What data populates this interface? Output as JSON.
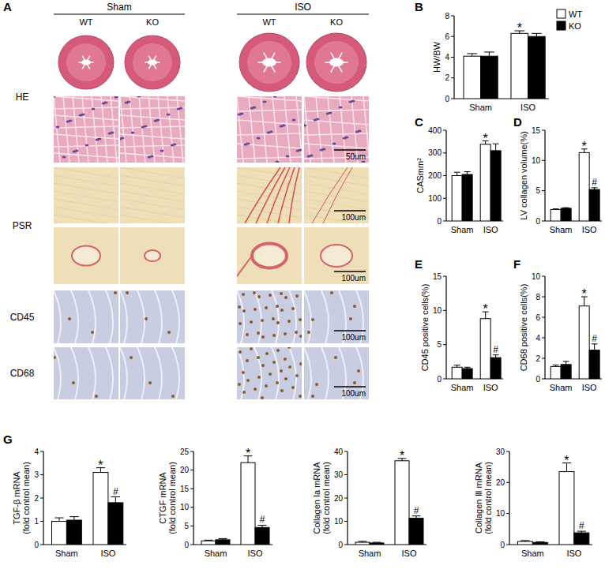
{
  "panel_a": {
    "title": "A",
    "groups": [
      {
        "label": "Sham",
        "columns": [
          "WT",
          "KO"
        ]
      },
      {
        "label": "ISO",
        "columns": [
          "WT",
          "KO"
        ]
      }
    ],
    "rows": [
      {
        "label": "HE",
        "scale_bars": [
          null,
          "50um"
        ]
      },
      {
        "label": "PSR",
        "scale_bars": [
          "100um",
          "100um"
        ]
      },
      {
        "label": "CD45",
        "scale_bars": [
          "100um"
        ]
      },
      {
        "label": "CD68",
        "scale_bars": [
          "100um"
        ]
      }
    ]
  },
  "chart_data": [
    {
      "type": "bar",
      "title": "B",
      "y_label": "HW/BW",
      "categories": [
        "Sham",
        "ISO"
      ],
      "ylim": [
        0,
        8
      ],
      "yticks": [
        0,
        2,
        4,
        6,
        8
      ],
      "legend": "top-right",
      "series": [
        {
          "name": "WT",
          "color": "#ffffff",
          "values": [
            4.1,
            6.3
          ],
          "errors": [
            0.25,
            0.25
          ],
          "annotations": [
            null,
            "*"
          ]
        },
        {
          "name": "KO",
          "color": "#000000",
          "values": [
            4.1,
            6.0
          ],
          "errors": [
            0.4,
            0.3
          ],
          "annotations": [
            null,
            null
          ]
        }
      ]
    },
    {
      "type": "bar",
      "title": "C",
      "y_label": "CASmm²",
      "categories": [
        "Sham",
        "ISO"
      ],
      "ylim": [
        0,
        400
      ],
      "yticks": [
        0,
        100,
        200,
        300,
        400
      ],
      "series": [
        {
          "name": "WT",
          "color": "#ffffff",
          "values": [
            200,
            338
          ],
          "errors": [
            15,
            15
          ],
          "annotations": [
            null,
            "*"
          ]
        },
        {
          "name": "KO",
          "color": "#000000",
          "values": [
            205,
            310
          ],
          "errors": [
            12,
            30
          ],
          "annotations": [
            null,
            null
          ]
        }
      ]
    },
    {
      "type": "bar",
      "title": "D",
      "y_label": "LV  collagen volume(%)",
      "categories": [
        "Sham",
        "ISO"
      ],
      "ylim": [
        0,
        15
      ],
      "yticks": [
        0,
        5,
        10,
        15
      ],
      "series": [
        {
          "name": "WT",
          "color": "#ffffff",
          "values": [
            1.9,
            11.3
          ],
          "errors": [
            0.1,
            0.6
          ],
          "annotations": [
            null,
            "*"
          ]
        },
        {
          "name": "KO",
          "color": "#000000",
          "values": [
            2.1,
            5.2
          ],
          "errors": [
            0.1,
            0.3
          ],
          "annotations": [
            null,
            "#"
          ]
        }
      ]
    },
    {
      "type": "bar",
      "title": "E",
      "y_label": "CD45 positive cells(%)",
      "categories": [
        "Sham",
        "ISO"
      ],
      "ylim": [
        0,
        15
      ],
      "yticks": [
        0,
        5,
        10,
        15
      ],
      "series": [
        {
          "name": "WT",
          "color": "#ffffff",
          "values": [
            1.7,
            8.8
          ],
          "errors": [
            0.3,
            1.0
          ],
          "annotations": [
            null,
            "*"
          ]
        },
        {
          "name": "KO",
          "color": "#000000",
          "values": [
            1.5,
            3.1
          ],
          "errors": [
            0.2,
            0.4
          ],
          "annotations": [
            null,
            "#"
          ]
        }
      ]
    },
    {
      "type": "bar",
      "title": "F",
      "y_label": "CD68 positive cells(%)",
      "categories": [
        "Sham",
        "ISO"
      ],
      "ylim": [
        0,
        10
      ],
      "yticks": [
        0,
        2,
        4,
        6,
        8,
        10
      ],
      "series": [
        {
          "name": "WT",
          "color": "#ffffff",
          "values": [
            1.2,
            7.1
          ],
          "errors": [
            0.15,
            0.9
          ],
          "annotations": [
            null,
            "*"
          ]
        },
        {
          "name": "KO",
          "color": "#000000",
          "values": [
            1.4,
            2.8
          ],
          "errors": [
            0.3,
            0.6
          ],
          "annotations": [
            null,
            "#"
          ]
        }
      ]
    },
    {
      "type": "bar",
      "title": "G",
      "y_label": "TGF-β mRNA\n(fold control mean)",
      "categories": [
        "Sham",
        "ISO"
      ],
      "ylim": [
        0,
        4
      ],
      "yticks": [
        0,
        1,
        2,
        3,
        4
      ],
      "series": [
        {
          "name": "WT",
          "color": "#ffffff",
          "values": [
            1.0,
            3.1
          ],
          "errors": [
            0.15,
            0.2
          ],
          "annotations": [
            null,
            "*"
          ]
        },
        {
          "name": "KO",
          "color": "#000000",
          "values": [
            1.05,
            1.8
          ],
          "errors": [
            0.15,
            0.25
          ],
          "annotations": [
            null,
            "#"
          ]
        }
      ]
    },
    {
      "type": "bar",
      "y_label": "CTGF mRNA\n(fold control mean)",
      "categories": [
        "Sham",
        "ISO"
      ],
      "ylim": [
        0,
        25
      ],
      "yticks": [
        0,
        5,
        10,
        15,
        20,
        25
      ],
      "series": [
        {
          "name": "WT",
          "color": "#ffffff",
          "values": [
            1.0,
            22
          ],
          "errors": [
            0.2,
            1.8
          ],
          "annotations": [
            null,
            "*"
          ]
        },
        {
          "name": "KO",
          "color": "#000000",
          "values": [
            1.3,
            4.6
          ],
          "errors": [
            0.3,
            0.6
          ],
          "annotations": [
            null,
            "#"
          ]
        }
      ]
    },
    {
      "type": "bar",
      "y_label": "Collagen Ⅰa mRNA\n(fold control mean)",
      "categories": [
        "Sham",
        "ISO"
      ],
      "ylim": [
        0,
        40
      ],
      "yticks": [
        0,
        10,
        20,
        30,
        40
      ],
      "series": [
        {
          "name": "WT",
          "color": "#ffffff",
          "values": [
            1.0,
            36
          ],
          "errors": [
            0.4,
            1.0
          ],
          "annotations": [
            null,
            "*"
          ]
        },
        {
          "name": "KO",
          "color": "#000000",
          "values": [
            0.7,
            11.3
          ],
          "errors": [
            0.3,
            1.0
          ],
          "annotations": [
            null,
            "#"
          ]
        }
      ]
    },
    {
      "type": "bar",
      "y_label": "Collagen Ⅲ mRNA\n(fold control mean)",
      "categories": [
        "Sham",
        "ISO"
      ],
      "ylim": [
        0,
        30
      ],
      "yticks": [
        0,
        10,
        20,
        30
      ],
      "series": [
        {
          "name": "WT",
          "color": "#ffffff",
          "values": [
            1.0,
            23.5
          ],
          "errors": [
            0.3,
            2.8
          ],
          "annotations": [
            null,
            "*"
          ]
        },
        {
          "name": "KO",
          "color": "#000000",
          "values": [
            0.7,
            3.8
          ],
          "errors": [
            0.2,
            0.5
          ],
          "annotations": [
            null,
            "#"
          ]
        }
      ]
    }
  ]
}
